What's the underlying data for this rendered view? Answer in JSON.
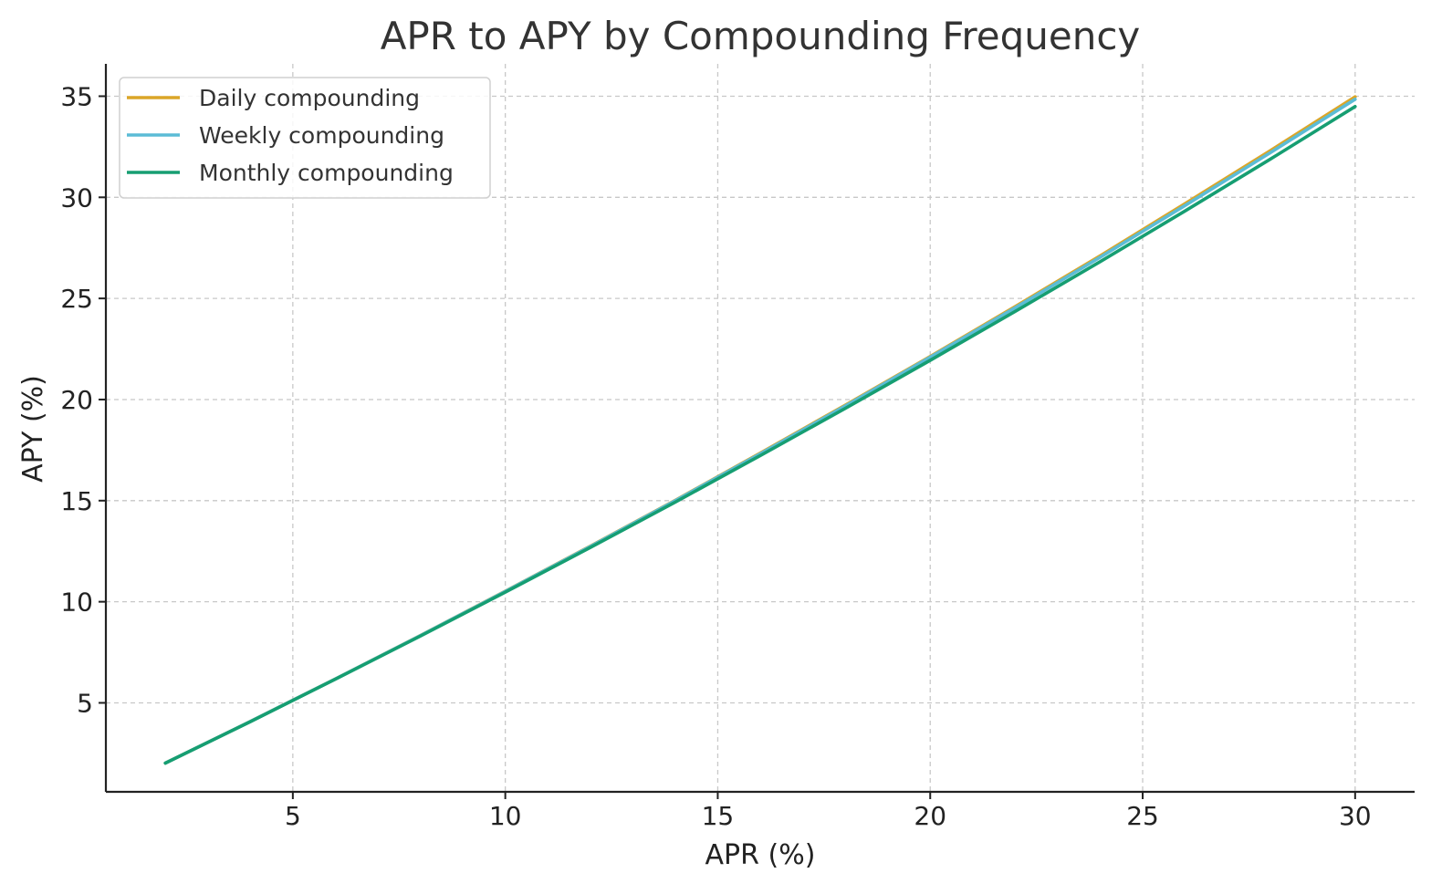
{
  "chart_data": {
    "type": "line",
    "title": "APR to APY by Compounding Frequency",
    "xlabel": "APR (%)",
    "ylabel": "APY (%)",
    "xlim": [
      0.6,
      31.4
    ],
    "ylim": [
      0.6,
      36.6
    ],
    "x_ticks": [
      "5",
      "10",
      "15",
      "20",
      "25",
      "30"
    ],
    "y_ticks": [
      "5",
      "10",
      "15",
      "20",
      "25",
      "30",
      "35"
    ],
    "grid": true,
    "legend_position": "top-left",
    "x": [
      2,
      4,
      6,
      8,
      10,
      12,
      14,
      16,
      18,
      20,
      22,
      24,
      26,
      28,
      30
    ],
    "series": [
      {
        "name": "Daily compounding",
        "color": "#dba628",
        "values": [
          2.02,
          4.08,
          6.18,
          8.33,
          10.52,
          12.75,
          15.02,
          17.35,
          19.72,
          22.13,
          24.6,
          27.11,
          29.69,
          32.3,
          34.97
        ]
      },
      {
        "name": "Weekly compounding",
        "color": "#5bbcd6",
        "values": [
          2.02,
          4.08,
          6.18,
          8.32,
          10.51,
          12.73,
          15.0,
          17.32,
          19.68,
          22.09,
          24.54,
          27.04,
          29.6,
          32.2,
          34.85
        ]
      },
      {
        "name": "Monthly compounding",
        "color": "#169e72",
        "values": [
          2.02,
          4.07,
          6.17,
          8.3,
          10.47,
          12.68,
          14.93,
          17.23,
          19.56,
          21.94,
          24.36,
          26.82,
          29.33,
          31.88,
          34.49
        ]
      }
    ]
  }
}
